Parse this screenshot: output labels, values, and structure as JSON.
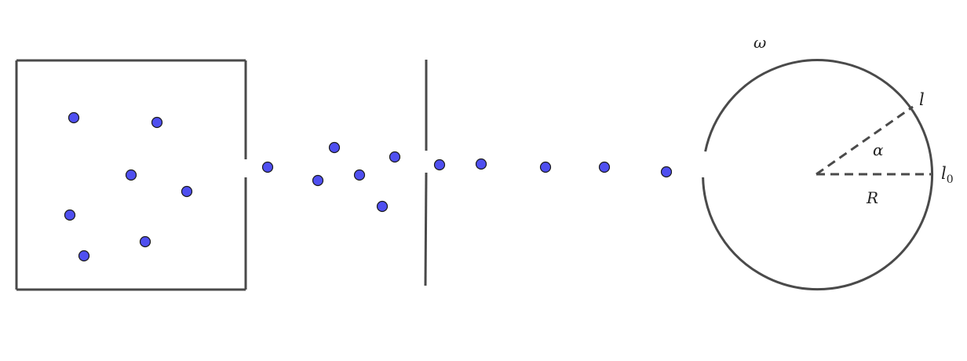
{
  "labels": {
    "omega": "ω",
    "l": "l",
    "alpha": "α",
    "l0_base": "l",
    "l0_sub": "0",
    "R": "R"
  },
  "colors": {
    "stroke": "#4a4a4a",
    "particle_fill": "#4f4ff0",
    "particle_stroke": "#1a1a1a",
    "background": "#ffffff"
  }
}
